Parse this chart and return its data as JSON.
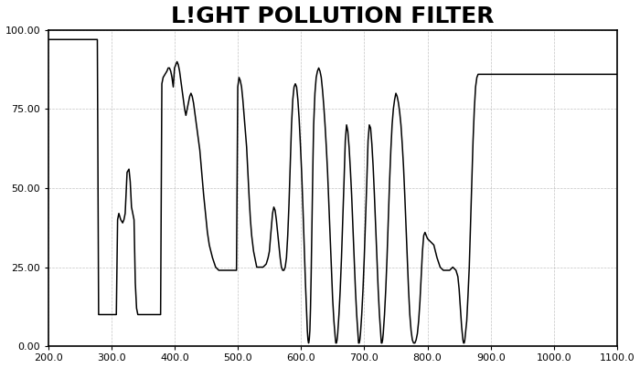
{
  "title": "L!GHT POLLUTION FILTER",
  "xlim": [
    200.0,
    1100.0
  ],
  "ylim": [
    0.0,
    100.0
  ],
  "xticks": [
    200.0,
    300.0,
    400.0,
    500.0,
    600.0,
    700.0,
    800.0,
    900.0,
    1000.0,
    1100.0
  ],
  "yticks": [
    0.0,
    25.0,
    50.0,
    75.0,
    100.0
  ],
  "background_color": "#ffffff",
  "plot_bg_color": "#ffffff",
  "line_color": "#000000",
  "grid_color": "#aaaaaa",
  "title_fontsize": 18,
  "curve": [
    [
      200,
      97
    ],
    [
      210,
      97
    ],
    [
      220,
      97
    ],
    [
      230,
      97
    ],
    [
      240,
      97
    ],
    [
      250,
      97
    ],
    [
      260,
      97
    ],
    [
      270,
      97
    ],
    [
      275,
      97
    ],
    [
      278,
      97
    ],
    [
      280,
      10
    ],
    [
      282,
      10
    ],
    [
      285,
      10
    ],
    [
      290,
      10
    ],
    [
      295,
      10
    ],
    [
      300,
      10
    ],
    [
      305,
      10
    ],
    [
      308,
      10
    ],
    [
      310,
      40
    ],
    [
      312,
      42
    ],
    [
      315,
      40
    ],
    [
      318,
      39
    ],
    [
      320,
      40
    ],
    [
      322,
      42
    ],
    [
      325,
      55
    ],
    [
      328,
      56
    ],
    [
      330,
      52
    ],
    [
      332,
      44
    ],
    [
      334,
      42
    ],
    [
      336,
      40
    ],
    [
      338,
      20
    ],
    [
      340,
      12
    ],
    [
      342,
      10
    ],
    [
      345,
      10
    ],
    [
      350,
      10
    ],
    [
      355,
      10
    ],
    [
      360,
      10
    ],
    [
      365,
      10
    ],
    [
      370,
      10
    ],
    [
      375,
      10
    ],
    [
      378,
      10
    ],
    [
      380,
      83
    ],
    [
      382,
      85
    ],
    [
      385,
      86
    ],
    [
      388,
      87
    ],
    [
      390,
      88
    ],
    [
      392,
      88
    ],
    [
      394,
      87
    ],
    [
      396,
      85
    ],
    [
      398,
      82
    ],
    [
      400,
      88
    ],
    [
      402,
      89
    ],
    [
      404,
      90
    ],
    [
      406,
      89
    ],
    [
      408,
      87
    ],
    [
      410,
      84
    ],
    [
      412,
      81
    ],
    [
      414,
      78
    ],
    [
      416,
      75
    ],
    [
      418,
      73
    ],
    [
      420,
      75
    ],
    [
      422,
      77
    ],
    [
      424,
      79
    ],
    [
      426,
      80
    ],
    [
      428,
      79
    ],
    [
      430,
      77
    ],
    [
      432,
      74
    ],
    [
      434,
      71
    ],
    [
      436,
      68
    ],
    [
      438,
      65
    ],
    [
      440,
      62
    ],
    [
      443,
      55
    ],
    [
      446,
      48
    ],
    [
      449,
      42
    ],
    [
      452,
      36
    ],
    [
      455,
      32
    ],
    [
      460,
      28
    ],
    [
      465,
      25
    ],
    [
      470,
      24
    ],
    [
      475,
      24
    ],
    [
      480,
      24
    ],
    [
      485,
      24
    ],
    [
      490,
      24
    ],
    [
      495,
      24
    ],
    [
      498,
      24
    ],
    [
      500,
      82
    ],
    [
      502,
      85
    ],
    [
      504,
      84
    ],
    [
      506,
      82
    ],
    [
      508,
      78
    ],
    [
      510,
      73
    ],
    [
      512,
      68
    ],
    [
      514,
      63
    ],
    [
      516,
      55
    ],
    [
      518,
      47
    ],
    [
      520,
      40
    ],
    [
      522,
      35
    ],
    [
      525,
      30
    ],
    [
      528,
      27
    ],
    [
      530,
      25
    ],
    [
      535,
      25
    ],
    [
      540,
      25
    ],
    [
      545,
      26
    ],
    [
      548,
      28
    ],
    [
      550,
      30
    ],
    [
      552,
      35
    ],
    [
      555,
      42
    ],
    [
      557,
      44
    ],
    [
      559,
      43
    ],
    [
      561,
      40
    ],
    [
      563,
      36
    ],
    [
      565,
      32
    ],
    [
      567,
      28
    ],
    [
      569,
      25
    ],
    [
      571,
      24
    ],
    [
      573,
      24
    ],
    [
      575,
      25
    ],
    [
      577,
      28
    ],
    [
      579,
      35
    ],
    [
      581,
      45
    ],
    [
      583,
      58
    ],
    [
      585,
      70
    ],
    [
      587,
      78
    ],
    [
      589,
      82
    ],
    [
      591,
      83
    ],
    [
      593,
      82
    ],
    [
      595,
      78
    ],
    [
      597,
      72
    ],
    [
      599,
      64
    ],
    [
      601,
      55
    ],
    [
      603,
      44
    ],
    [
      605,
      32
    ],
    [
      607,
      20
    ],
    [
      609,
      10
    ],
    [
      610,
      5
    ],
    [
      611,
      2
    ],
    [
      612,
      1
    ],
    [
      613,
      2
    ],
    [
      614,
      5
    ],
    [
      615,
      12
    ],
    [
      616,
      22
    ],
    [
      617,
      35
    ],
    [
      618,
      48
    ],
    [
      619,
      60
    ],
    [
      620,
      70
    ],
    [
      622,
      80
    ],
    [
      624,
      85
    ],
    [
      626,
      87
    ],
    [
      628,
      88
    ],
    [
      630,
      87
    ],
    [
      632,
      85
    ],
    [
      634,
      81
    ],
    [
      636,
      76
    ],
    [
      638,
      70
    ],
    [
      640,
      63
    ],
    [
      642,
      55
    ],
    [
      644,
      45
    ],
    [
      646,
      35
    ],
    [
      648,
      25
    ],
    [
      650,
      15
    ],
    [
      652,
      8
    ],
    [
      654,
      3
    ],
    [
      655,
      1
    ],
    [
      656,
      1
    ],
    [
      657,
      2
    ],
    [
      658,
      4
    ],
    [
      660,
      10
    ],
    [
      662,
      18
    ],
    [
      664,
      28
    ],
    [
      666,
      40
    ],
    [
      668,
      52
    ],
    [
      670,
      65
    ],
    [
      672,
      70
    ],
    [
      674,
      68
    ],
    [
      676,
      63
    ],
    [
      678,
      56
    ],
    [
      680,
      48
    ],
    [
      682,
      38
    ],
    [
      684,
      28
    ],
    [
      686,
      18
    ],
    [
      688,
      10
    ],
    [
      690,
      4
    ],
    [
      691,
      1
    ],
    [
      692,
      1
    ],
    [
      693,
      2
    ],
    [
      694,
      4
    ],
    [
      696,
      10
    ],
    [
      698,
      18
    ],
    [
      700,
      28
    ],
    [
      702,
      40
    ],
    [
      704,
      52
    ],
    [
      706,
      65
    ],
    [
      708,
      70
    ],
    [
      710,
      69
    ],
    [
      712,
      64
    ],
    [
      714,
      57
    ],
    [
      716,
      48
    ],
    [
      718,
      38
    ],
    [
      720,
      28
    ],
    [
      722,
      18
    ],
    [
      724,
      10
    ],
    [
      726,
      4
    ],
    [
      727,
      1
    ],
    [
      728,
      1
    ],
    [
      729,
      2
    ],
    [
      730,
      4
    ],
    [
      732,
      10
    ],
    [
      734,
      18
    ],
    [
      736,
      28
    ],
    [
      738,
      40
    ],
    [
      740,
      52
    ],
    [
      742,
      62
    ],
    [
      744,
      70
    ],
    [
      746,
      75
    ],
    [
      748,
      78
    ],
    [
      750,
      80
    ],
    [
      752,
      79
    ],
    [
      754,
      77
    ],
    [
      756,
      74
    ],
    [
      758,
      70
    ],
    [
      760,
      64
    ],
    [
      762,
      57
    ],
    [
      764,
      48
    ],
    [
      766,
      38
    ],
    [
      768,
      28
    ],
    [
      770,
      18
    ],
    [
      772,
      10
    ],
    [
      774,
      5
    ],
    [
      776,
      2
    ],
    [
      778,
      1
    ],
    [
      780,
      1
    ],
    [
      782,
      2
    ],
    [
      784,
      4
    ],
    [
      786,
      8
    ],
    [
      788,
      14
    ],
    [
      790,
      22
    ],
    [
      792,
      30
    ],
    [
      794,
      35
    ],
    [
      796,
      36
    ],
    [
      798,
      35
    ],
    [
      800,
      34
    ],
    [
      805,
      33
    ],
    [
      810,
      32
    ],
    [
      815,
      28
    ],
    [
      820,
      25
    ],
    [
      825,
      24
    ],
    [
      830,
      24
    ],
    [
      835,
      24
    ],
    [
      840,
      25
    ],
    [
      845,
      24
    ],
    [
      848,
      22
    ],
    [
      850,
      18
    ],
    [
      852,
      12
    ],
    [
      854,
      6
    ],
    [
      856,
      2
    ],
    [
      857,
      1
    ],
    [
      858,
      1
    ],
    [
      859,
      2
    ],
    [
      860,
      4
    ],
    [
      862,
      8
    ],
    [
      864,
      16
    ],
    [
      866,
      25
    ],
    [
      868,
      38
    ],
    [
      870,
      52
    ],
    [
      872,
      65
    ],
    [
      874,
      75
    ],
    [
      876,
      82
    ],
    [
      878,
      85
    ],
    [
      880,
      86
    ],
    [
      885,
      86
    ],
    [
      890,
      86
    ],
    [
      895,
      86
    ],
    [
      900,
      86
    ],
    [
      910,
      86
    ],
    [
      920,
      86
    ],
    [
      930,
      86
    ],
    [
      940,
      86
    ],
    [
      950,
      86
    ],
    [
      960,
      86
    ],
    [
      970,
      86
    ],
    [
      980,
      86
    ],
    [
      990,
      86
    ],
    [
      1000,
      86
    ],
    [
      1010,
      86
    ],
    [
      1020,
      86
    ],
    [
      1030,
      86
    ],
    [
      1040,
      86
    ],
    [
      1050,
      86
    ],
    [
      1060,
      86
    ],
    [
      1070,
      86
    ],
    [
      1080,
      86
    ],
    [
      1090,
      86
    ],
    [
      1100,
      86
    ]
  ]
}
